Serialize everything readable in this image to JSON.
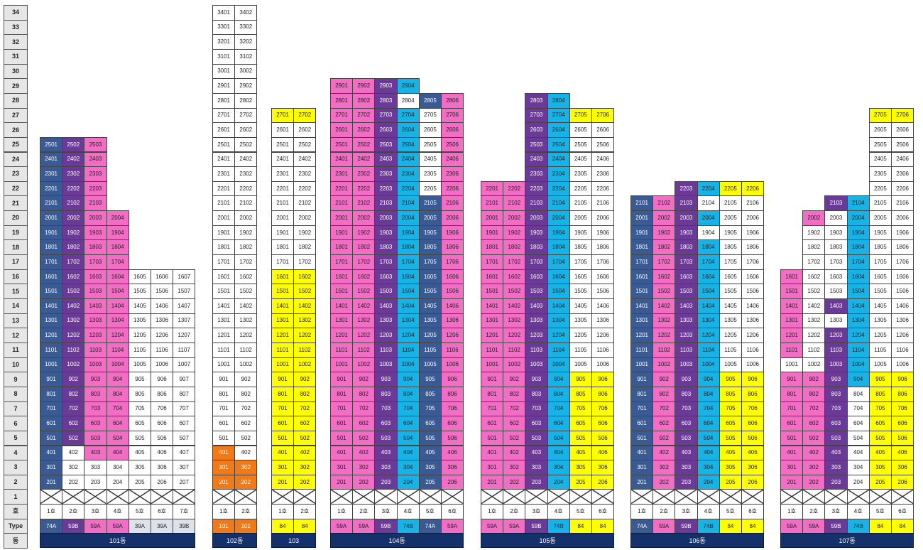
{
  "colors": {
    "blue": "#3a5a94",
    "purple": "#6b3a96",
    "pink": "#f26dc4",
    "cyan": "#17b3e6",
    "yellow": "#ffff00",
    "white": "#ffffff",
    "orange": "#f07a18",
    "light": "#dde2ea"
  },
  "floor_labels": [
    "34",
    "33",
    "32",
    "31",
    "30",
    "29",
    "28",
    "27",
    "26",
    "25",
    "24",
    "23",
    "22",
    "21",
    "20",
    "19",
    "18",
    "17",
    "16",
    "15",
    "14",
    "13",
    "12",
    "11",
    "10",
    "9",
    "8",
    "7",
    "6",
    "5",
    "4",
    "3",
    "2",
    "1",
    "호",
    "Type",
    "동"
  ],
  "buildings": [
    {
      "name": "101동",
      "ho": [
        "1호",
        "2호",
        "3호",
        "4호",
        "5호",
        "6호",
        "7호"
      ],
      "types": [
        "74A",
        "59B",
        "59A",
        "59A",
        "39A",
        "39A",
        "39B"
      ],
      "type_colors": [
        "blue",
        "purple",
        "pink",
        "pink",
        "light",
        "light",
        "light"
      ],
      "max_floors": [
        25,
        25,
        25,
        20,
        16,
        16,
        16
      ],
      "special": {
        "4": [
          "blue",
          "white",
          "pink",
          "pink",
          "white",
          "white",
          "white"
        ],
        "3": [
          "blue",
          "white",
          "white",
          "white",
          "white",
          "white",
          "white"
        ],
        "2": [
          "blue",
          "white",
          "white",
          "white",
          "white",
          "white",
          "white"
        ]
      },
      "overrides": {}
    },
    {
      "name": "102동",
      "ho": [
        "1호",
        "2호"
      ],
      "types": [
        "101",
        "101"
      ],
      "type_colors": [
        "orange",
        "orange"
      ],
      "max_floors": [
        34,
        34
      ],
      "special": {
        "4": [
          "orange",
          "white"
        ],
        "3": [
          "orange",
          "orange"
        ],
        "2": [
          "orange",
          "orange"
        ]
      },
      "overrides": {},
      "default_colors": [
        "white",
        "white"
      ]
    },
    {
      "name": "103",
      "ho": [
        "1호",
        "2호"
      ],
      "types": [
        "84",
        "84"
      ],
      "type_colors": [
        "yellow",
        "yellow"
      ],
      "max_floors": [
        27,
        27
      ],
      "special": {},
      "overrides": {
        "white_from": 17
      }
    },
    {
      "name": "104동",
      "ho": [
        "1호",
        "2호",
        "3호",
        "4호",
        "5호",
        "6호"
      ],
      "types": [
        "59A",
        "59A",
        "59B",
        "74B",
        "74A",
        "59A"
      ],
      "type_colors": [
        "pink",
        "pink",
        "purple",
        "cyan",
        "blue",
        "pink"
      ],
      "max_floors": [
        29,
        29,
        29,
        29,
        28,
        28
      ],
      "special": {
        "29": [
          "pink",
          "pink",
          "purple",
          "cyan"
        ],
        "28": [
          "pink",
          "pink",
          "purple",
          "white",
          "blue",
          "pink"
        ],
        "27": [
          "pink",
          "pink",
          "purple",
          "cyan",
          "white",
          "pink"
        ],
        "26": [
          "pink",
          "pink",
          "purple",
          "cyan",
          "white",
          "pink"
        ],
        "25": [
          "pink",
          "pink",
          "purple",
          "cyan",
          "white",
          "pink"
        ],
        "24": [
          "pink",
          "pink",
          "purple",
          "cyan",
          "white",
          "pink"
        ],
        "23": [
          "pink",
          "pink",
          "purple",
          "cyan",
          "white",
          "pink"
        ],
        "22": [
          "pink",
          "pink",
          "purple",
          "cyan",
          "white",
          "pink"
        ]
      },
      "overrides": {}
    },
    {
      "name": "105동",
      "ho": [
        "1호",
        "2호",
        "3호",
        "4호",
        "5호",
        "6호"
      ],
      "types": [
        "59A",
        "59A",
        "59B",
        "74B",
        "84",
        "84"
      ],
      "type_colors": [
        "pink",
        "pink",
        "purple",
        "cyan",
        "yellow",
        "yellow"
      ],
      "max_floors": [
        22,
        22,
        28,
        28,
        27,
        27
      ],
      "special": {
        "27": [
          "",
          "",
          "purple",
          "cyan",
          "yellow",
          "yellow"
        ]
      },
      "overrides": {
        "upper_white": [
          4,
          5
        ],
        "upper_white_from": 10
      }
    },
    {
      "name": "106동",
      "ho": [
        "1호",
        "2호",
        "3호",
        "4호",
        "5호",
        "6호"
      ],
      "types": [
        "74A",
        "59A",
        "59B",
        "74B",
        "84",
        "84"
      ],
      "type_colors": [
        "blue",
        "pink",
        "purple",
        "cyan",
        "yellow",
        "yellow"
      ],
      "max_floors": [
        21,
        21,
        22,
        22,
        22,
        22
      ],
      "special": {
        "22": [
          "",
          "",
          "purple",
          "cyan",
          "yellow",
          "yellow"
        ],
        "21": [
          "blue",
          "pink",
          "purple",
          "white",
          "white",
          "white"
        ],
        "20": [
          "blue",
          "pink",
          "purple",
          "cyan",
          "white",
          "white"
        ],
        "19": [
          "blue",
          "pink",
          "purple",
          "white",
          "white",
          "white"
        ],
        "18": [
          "blue",
          "pink",
          "purple",
          "cyan",
          "white",
          "white"
        ],
        "17": [
          "blue",
          "pink",
          "purple",
          "cyan",
          "white",
          "white"
        ]
      },
      "overrides": {
        "upper_white": [
          4,
          5
        ],
        "upper_white_from": 10
      }
    },
    {
      "name": "107동",
      "ho": [
        "1호",
        "2호",
        "3호",
        "4호",
        "5호",
        "6호"
      ],
      "types": [
        "59A",
        "59A",
        "59B",
        "74B",
        "84",
        "84"
      ],
      "type_colors": [
        "pink",
        "pink",
        "purple",
        "cyan",
        "yellow",
        "yellow"
      ],
      "max_floors": [
        16,
        20,
        21,
        21,
        27,
        27
      ],
      "special": {
        "27": [
          "",
          "",
          "",
          "",
          "yellow",
          "yellow"
        ],
        "21": [
          "",
          "",
          "purple",
          "cyan",
          "white",
          "white"
        ],
        "20": [
          "",
          "pink",
          "white",
          "cyan",
          "white",
          "white"
        ],
        "19": [
          "",
          "white",
          "white",
          "cyan",
          "white",
          "white"
        ],
        "18": [
          "",
          "white",
          "white",
          "cyan",
          "white",
          "white"
        ],
        "17": [
          "",
          "white",
          "white",
          "cyan",
          "white",
          "white"
        ],
        "16": [
          "pink",
          "white",
          "white",
          "cyan",
          "white",
          "white"
        ],
        "15": [
          "pink",
          "white",
          "white",
          "cyan",
          "white",
          "white"
        ],
        "14": [
          "pink",
          "white",
          "purple",
          "cyan",
          "white",
          "white"
        ],
        "13": [
          "pink",
          "white",
          "white",
          "cyan",
          "white",
          "white"
        ],
        "12": [
          "pink",
          "white",
          "purple",
          "cyan",
          "white",
          "white"
        ],
        "11": [
          "pink",
          "white",
          "purple",
          "cyan",
          "white",
          "white"
        ],
        "10": [
          "white",
          "white",
          "purple",
          "cyan",
          "white",
          "white"
        ],
        "8": [
          "pink",
          "pink",
          "purple",
          "white",
          "yellow",
          "yellow"
        ],
        "7": [
          "pink",
          "pink",
          "purple",
          "white",
          "yellow",
          "yellow"
        ],
        "6": [
          "pink",
          "pink",
          "purple",
          "white",
          "yellow",
          "yellow"
        ],
        "5": [
          "pink",
          "pink",
          "purple",
          "white",
          "yellow",
          "yellow"
        ],
        "4": [
          "pink",
          "pink",
          "purple",
          "white",
          "yellow",
          "yellow"
        ],
        "3": [
          "pink",
          "pink",
          "purple",
          "white",
          "yellow",
          "yellow"
        ],
        "2": [
          "pink",
          "pink",
          "purple",
          "white",
          "yellow",
          "yellow"
        ]
      },
      "overrides": {
        "upper_white": [
          4,
          5
        ],
        "upper_white_from": 10
      }
    }
  ]
}
